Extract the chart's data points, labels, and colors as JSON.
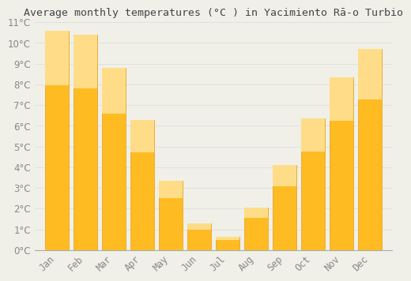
{
  "title": "Average monthly temperatures (°C ) in Yacimiento RÃ³-o Turbio",
  "title_display": "Average monthly temperatures (°C ) in Yacimiento RÄ­-o Turbio",
  "months": [
    "Jan",
    "Feb",
    "Mar",
    "Apr",
    "May",
    "Jun",
    "Jul",
    "Aug",
    "Sep",
    "Oct",
    "Nov",
    "Dec"
  ],
  "values": [
    10.6,
    10.4,
    8.8,
    6.3,
    3.35,
    1.3,
    0.65,
    2.05,
    4.1,
    6.35,
    8.35,
    9.7
  ],
  "bar_color_top": "#FFCC44",
  "bar_color_bottom": "#F5A500",
  "bar_edge_color": "#E09000",
  "background_color": "#F0F0E8",
  "grid_color": "#DDDDDD",
  "text_color": "#888888",
  "spine_color": "#AAAAAA",
  "ylim": [
    0,
    11
  ],
  "yticks": [
    0,
    1,
    2,
    3,
    4,
    5,
    6,
    7,
    8,
    9,
    10,
    11
  ],
  "title_fontsize": 9.5,
  "tick_fontsize": 8.5,
  "bar_width": 0.85
}
